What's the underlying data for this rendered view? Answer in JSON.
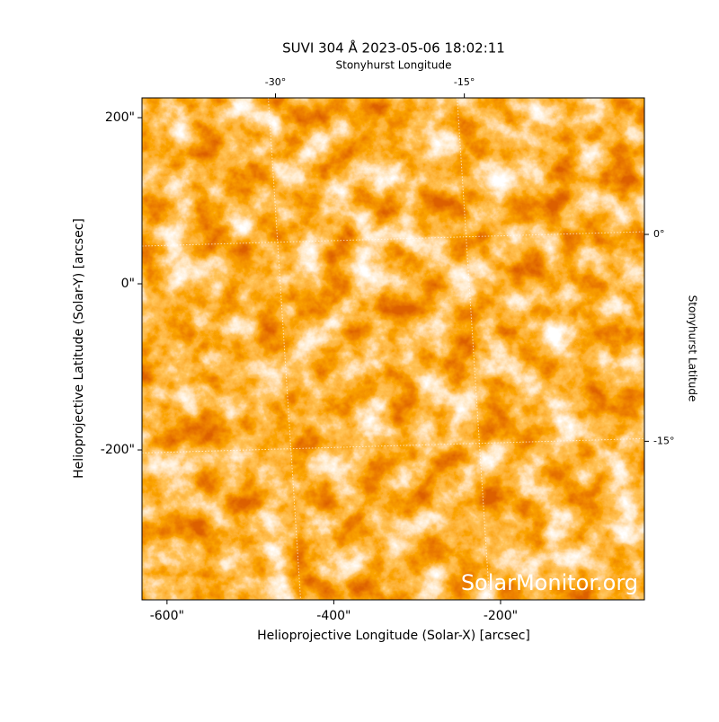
{
  "chart_data": {
    "type": "image",
    "title": "SUVI 304 Å 2023-05-06 18:02:11",
    "xlabel": "Helioprojective Longitude (Solar-X) [arcsec]",
    "ylabel": "Helioprojective Latitude (Solar-Y) [arcsec]",
    "x2label": "Stonyhurst Longitude",
    "y2label": "Stonyhurst Latitude",
    "watermark": "SolarMonitor.org",
    "xlim": [
      -630,
      -27.5
    ],
    "ylim": [
      -380.5,
      223.8
    ],
    "xticks": [
      {
        "value": -600,
        "label": "-600\""
      },
      {
        "value": -400,
        "label": "-400\""
      },
      {
        "value": -200,
        "label": "-200\""
      }
    ],
    "yticks": [
      {
        "value": -200,
        "label": "-200\""
      },
      {
        "value": 0,
        "label": "0\""
      },
      {
        "value": 200,
        "label": "200\""
      }
    ],
    "x2lim": [
      -40.6,
      -0.7
    ],
    "x2ticks": [
      {
        "value": -30,
        "label": "-30°"
      },
      {
        "value": -15,
        "label": "-15°"
      }
    ],
    "y2lim": [
      -26.5,
      9.9
    ],
    "y2ticks": [
      {
        "value": -15,
        "label": "-15°"
      },
      {
        "value": 0,
        "label": "0°"
      }
    ],
    "grid": true
  }
}
